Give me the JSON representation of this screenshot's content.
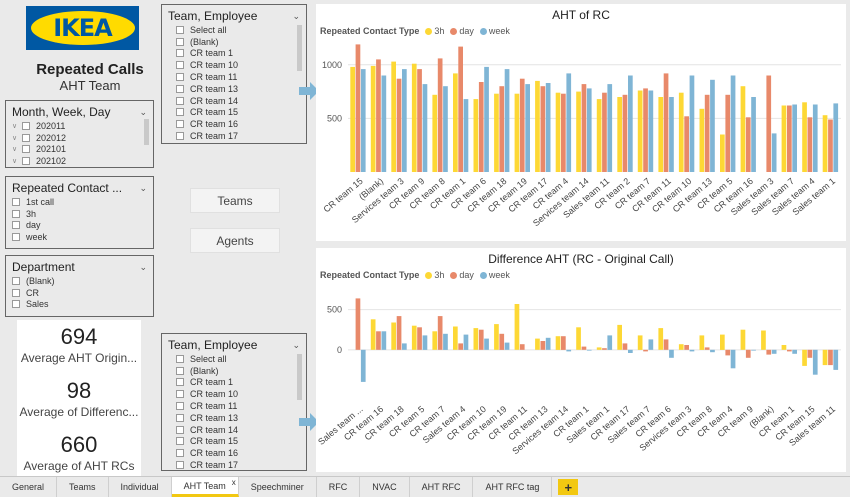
{
  "logo": {
    "text": "IKEA"
  },
  "header": {
    "title": "Repeated Calls",
    "subtitle": "AHT Team"
  },
  "slicer_month": {
    "title": "Month, Week, Day",
    "items": [
      "202011",
      "202012",
      "202101",
      "202102"
    ]
  },
  "slicer_contact": {
    "title": "Repeated Contact ...",
    "items": [
      "1st call",
      "3h",
      "day",
      "week"
    ]
  },
  "slicer_department": {
    "title": "Department",
    "items": [
      "(Blank)",
      "CR",
      "Sales"
    ]
  },
  "slicer_team_top": {
    "title": "Team, Employee",
    "items": [
      "Select all",
      "(Blank)",
      "CR team 1",
      "CR team 10",
      "CR team 11",
      "CR team 13",
      "CR team 14",
      "CR team 15",
      "CR team 16",
      "CR team 17"
    ]
  },
  "slicer_team_bottom": {
    "title": "Team, Employee",
    "items": [
      "Select all",
      "(Blank)",
      "CR team 1",
      "CR team 10",
      "CR team 11",
      "CR team 13",
      "CR team 14",
      "CR team 15",
      "CR team 16",
      "CR team 17"
    ]
  },
  "buttons": {
    "teams": "Teams",
    "agents": "Agents"
  },
  "cards": [
    {
      "value": "694",
      "label": "Average AHT Origin..."
    },
    {
      "value": "98",
      "label": "Average of Differenc..."
    },
    {
      "value": "660",
      "label": "Average of AHT RCs"
    }
  ],
  "legend": {
    "title": "Repeated Contact Type",
    "items": [
      "3h",
      "day",
      "week"
    ]
  },
  "colors": {
    "3h": "#fdd835",
    "day": "#e8896a",
    "week": "#7fb5d5",
    "accent": "#f2c811"
  },
  "chart_data": [
    {
      "type": "bar",
      "title": "AHT of RC",
      "categories": [
        "CR team 15",
        "(Blank)",
        "Services team 3",
        "CR team 9",
        "CR team 8",
        "CR team 1",
        "CR team 6",
        "CR team 18",
        "CR team 19",
        "CR team 17",
        "CR team 4",
        "Services team 14",
        "Sales team 11",
        "CR team 2",
        "CR team 7",
        "CR team 11",
        "CR team 10",
        "CR team 13",
        "CR team 5",
        "CR team 16",
        "Sales team 3",
        "Sales team 7",
        "Sales team 4",
        "Sales team 1"
      ],
      "series": [
        {
          "name": "3h",
          "values": [
            980,
            990,
            1030,
            1010,
            720,
            920,
            680,
            730,
            730,
            850,
            740,
            750,
            680,
            700,
            760,
            700,
            740,
            590,
            350,
            800,
            0,
            620,
            650,
            530
          ]
        },
        {
          "name": "day",
          "values": [
            1190,
            1050,
            870,
            960,
            1060,
            1170,
            840,
            800,
            870,
            800,
            730,
            820,
            740,
            720,
            780,
            920,
            520,
            720,
            720,
            510,
            900,
            620,
            510,
            490
          ]
        },
        {
          "name": "week",
          "values": [
            960,
            900,
            960,
            820,
            800,
            680,
            980,
            960,
            820,
            830,
            920,
            780,
            820,
            900,
            760,
            700,
            900,
            860,
            900,
            700,
            360,
            630,
            630,
            640
          ]
        }
      ],
      "ylim": [
        0,
        1250
      ],
      "yticks": [
        500,
        1000
      ],
      "ytick_labels": [
        "500",
        "1000"
      ],
      "xlabel": "",
      "ylabel": ""
    },
    {
      "type": "bar",
      "title": "Difference AHT (RC - Original Call)",
      "categories": [
        "Sales team ...",
        "CR team 16",
        "CR team 18",
        "CR team 5",
        "CR team 7",
        "Sales team 4",
        "CR team 10",
        "CR team 19",
        "CR team 11",
        "CR team 13",
        "Services team 14",
        "CR team 1",
        "Sales team 1",
        "CR team 17",
        "Sales team 7",
        "CR team 6",
        "Services team 3",
        "CR team 8",
        "CR team 4",
        "CR team 9",
        "(Blank)",
        "CR team 1",
        "CR team 15",
        "Sales team 11"
      ],
      "series": [
        {
          "name": "3h",
          "values": [
            0,
            380,
            340,
            300,
            230,
            290,
            270,
            320,
            570,
            140,
            170,
            280,
            30,
            310,
            180,
            270,
            70,
            180,
            190,
            250,
            240,
            60,
            -200,
            -190
          ]
        },
        {
          "name": "day",
          "values": [
            640,
            230,
            420,
            280,
            420,
            80,
            250,
            200,
            70,
            110,
            170,
            40,
            20,
            80,
            -20,
            130,
            60,
            30,
            -70,
            -100,
            -60,
            -20,
            -100,
            -190
          ]
        },
        {
          "name": "week",
          "values": [
            -400,
            230,
            80,
            180,
            200,
            190,
            140,
            90,
            0,
            150,
            -20,
            -10,
            180,
            -40,
            130,
            -100,
            -20,
            -30,
            -230,
            -10,
            -50,
            -50,
            -310,
            -250
          ]
        }
      ],
      "ylim": [
        -600,
        720
      ],
      "yticks": [
        0,
        500
      ],
      "ytick_labels": [
        "0",
        "500"
      ],
      "xlabel": "",
      "ylabel": ""
    }
  ],
  "tabs": [
    "General",
    "Teams",
    "Individual",
    "AHT Team",
    "Speechminer",
    "RFC",
    "NVAC",
    "AHT RFC",
    "AHT RFC tag"
  ],
  "active_tab": "AHT Team",
  "tab_close": "x",
  "tab_add": "+"
}
